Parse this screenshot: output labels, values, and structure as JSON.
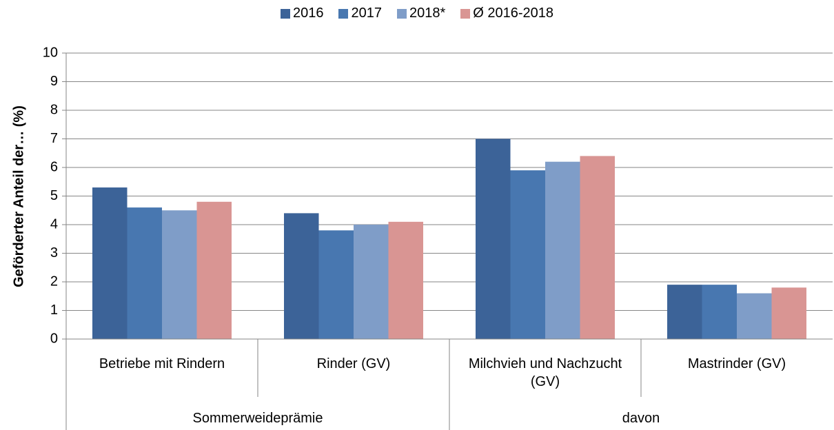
{
  "chart_data": {
    "type": "bar",
    "y_label": "Geförderter Anteil der… (%)",
    "categories": [
      "Betriebe mit Rindern",
      "Rinder (GV)",
      "Milchvieh und Nachzucht (GV)",
      "Mastrinder (GV)"
    ],
    "category_groups": [
      {
        "label": "Sommerweideprämie",
        "span": 2
      },
      {
        "label": "davon",
        "span": 2
      }
    ],
    "series": [
      {
        "name": "2016",
        "color": "#3c6398",
        "values": [
          5.3,
          4.4,
          7.0,
          1.9
        ]
      },
      {
        "name": "2017",
        "color": "#4877b0",
        "values": [
          4.6,
          3.8,
          5.9,
          1.9
        ]
      },
      {
        "name": "2018*",
        "color": "#7f9dc8",
        "values": [
          4.5,
          4.0,
          6.2,
          1.6
        ]
      },
      {
        "name": "Ø 2016-2018",
        "color": "#d99593",
        "values": [
          4.8,
          4.1,
          6.4,
          1.8
        ]
      }
    ],
    "ylim": [
      0,
      10
    ],
    "yticks": [
      0,
      1,
      2,
      3,
      4,
      5,
      6,
      7,
      8,
      9,
      10
    ],
    "grid": true,
    "legend": "top"
  }
}
